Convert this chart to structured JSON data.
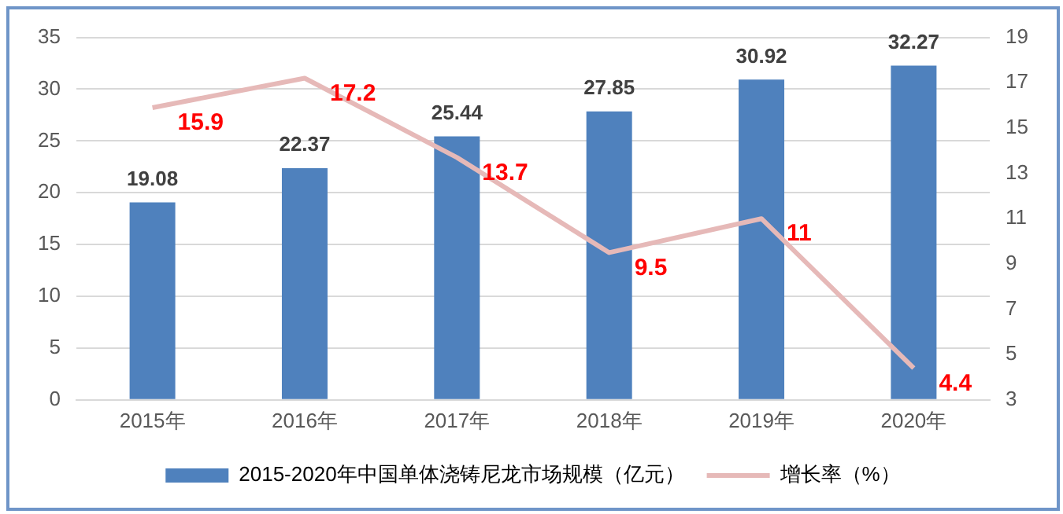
{
  "chart_data": {
    "type": "bar",
    "categories": [
      "2015年",
      "2016年",
      "2017年",
      "2018年",
      "2019年",
      "2020年"
    ],
    "series": [
      {
        "name": "2015-2020年中国单体浇铸尼龙市场规模（亿元）",
        "color": "#4f81bd",
        "values": [
          19.08,
          22.37,
          25.44,
          27.85,
          30.92,
          32.27
        ]
      },
      {
        "name": "增长率（%）",
        "type": "line",
        "axis": "y2",
        "color": "#e6b9b8",
        "values": [
          15.9,
          17.2,
          13.7,
          9.5,
          11,
          4.4
        ]
      }
    ],
    "ylim": [
      0,
      35
    ],
    "yticks": [
      0,
      5,
      10,
      15,
      20,
      25,
      30,
      35
    ],
    "y2lim": [
      3,
      19
    ],
    "y2ticks": [
      3,
      5,
      7,
      9,
      11,
      13,
      15,
      17,
      19
    ],
    "data_labels": true,
    "grid": "y",
    "legend": "bottom"
  }
}
